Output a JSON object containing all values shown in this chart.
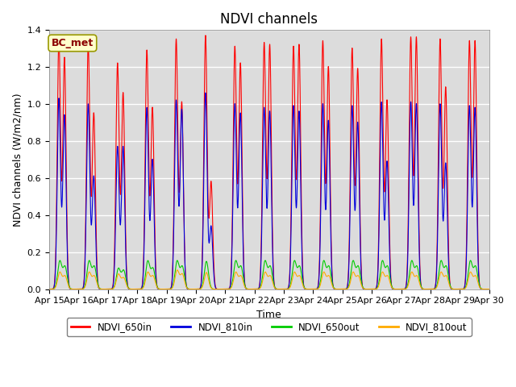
{
  "title": "NDVI channels",
  "xlabel": "Time",
  "ylabel": "NDVI channels (W/m2/nm)",
  "ylim": [
    0,
    1.4
  ],
  "yticks": [
    0.0,
    0.2,
    0.4,
    0.6,
    0.8,
    1.0,
    1.2,
    1.4
  ],
  "days": 15,
  "colors": {
    "NDVI_650in": "#ff0000",
    "NDVI_810in": "#0000dd",
    "NDVI_650out": "#00cc00",
    "NDVI_810out": "#ffaa00"
  },
  "legend_label": "BC_met",
  "plot_bg": "#dcdcdc",
  "fig_bg": "#ffffff",
  "grid_color": "#ffffff",
  "title_fontsize": 12,
  "label_fontsize": 9,
  "tick_fontsize": 8,
  "peak_650in": [
    1.35,
    1.32,
    1.22,
    1.29,
    1.35,
    1.37,
    1.31,
    1.33,
    1.31,
    1.34,
    1.3,
    1.35,
    1.36,
    1.35,
    1.34
  ],
  "peak2_650in": [
    1.25,
    0.95,
    1.06,
    0.98,
    1.01,
    0.58,
    1.22,
    1.32,
    1.32,
    1.2,
    1.19,
    1.02,
    1.36,
    1.09,
    1.34
  ],
  "peak_810in": [
    1.03,
    1.0,
    0.77,
    0.98,
    1.02,
    1.06,
    1.0,
    0.98,
    0.99,
    1.0,
    0.99,
    1.01,
    1.01,
    1.0,
    0.99
  ],
  "peak2_810in": [
    0.94,
    0.61,
    0.77,
    0.7,
    0.97,
    0.34,
    0.95,
    0.96,
    0.96,
    0.91,
    0.9,
    0.69,
    1.0,
    0.68,
    0.98
  ],
  "peak_650out": [
    0.15,
    0.15,
    0.11,
    0.15,
    0.15,
    0.15,
    0.15,
    0.15,
    0.15,
    0.15,
    0.15,
    0.15,
    0.15,
    0.15,
    0.15
  ],
  "peak2_650out": [
    0.12,
    0.12,
    0.1,
    0.11,
    0.12,
    0.0,
    0.12,
    0.12,
    0.12,
    0.12,
    0.12,
    0.12,
    0.12,
    0.12,
    0.12
  ],
  "peak_810out": [
    0.09,
    0.09,
    0.08,
    0.09,
    0.1,
    0.09,
    0.09,
    0.09,
    0.09,
    0.09,
    0.09,
    0.09,
    0.09,
    0.09,
    0.09
  ],
  "peak2_810out": [
    0.07,
    0.07,
    0.06,
    0.07,
    0.08,
    0.0,
    0.07,
    0.07,
    0.07,
    0.07,
    0.07,
    0.07,
    0.07,
    0.07,
    0.07
  ],
  "x_tick_labels": [
    "Apr 15",
    "Apr 16",
    "Apr 17",
    "Apr 18",
    "Apr 19",
    "Apr 20",
    "Apr 21",
    "Apr 22",
    "Apr 23",
    "Apr 24",
    "Apr 25",
    "Apr 26",
    "Apr 27",
    "Apr 28",
    "Apr 29",
    "Apr 30"
  ]
}
